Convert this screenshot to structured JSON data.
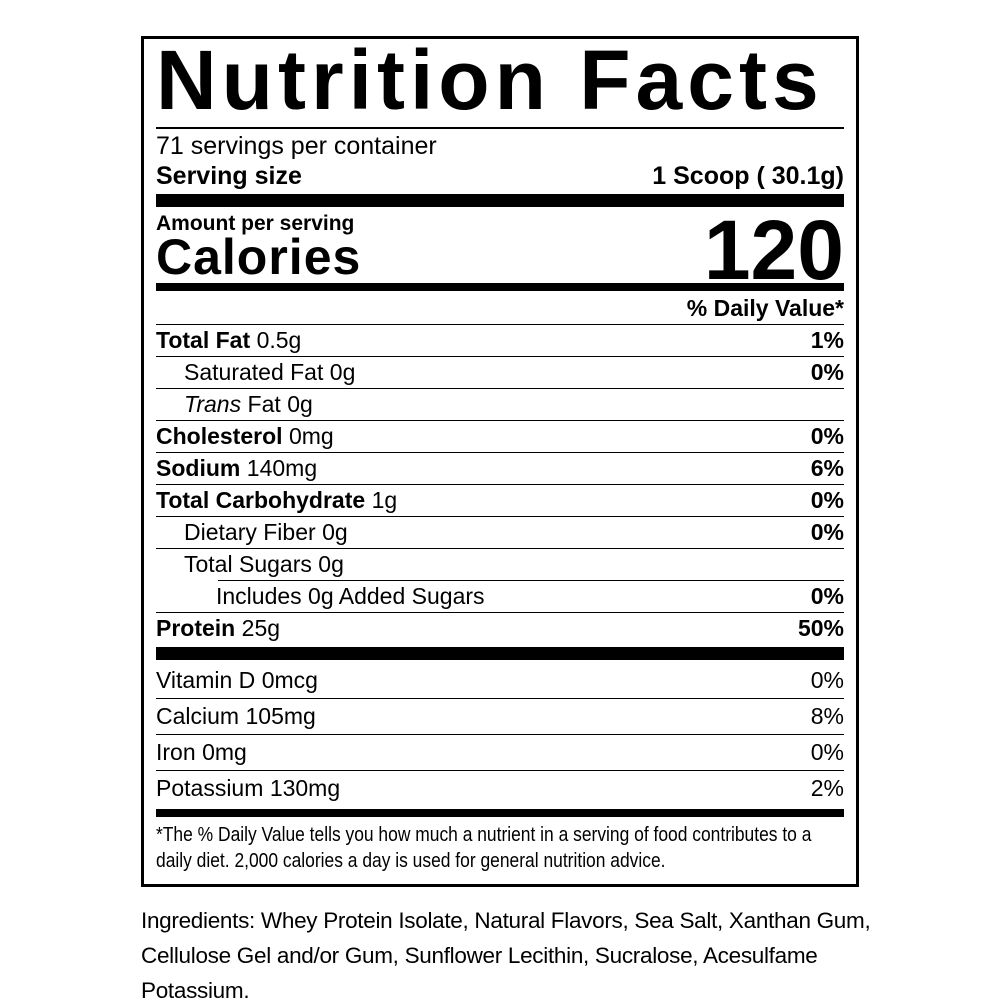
{
  "nutrition_label": {
    "title": "Nutrition Facts",
    "servings_per_container": "71 servings per container",
    "serving_size": {
      "label": "Serving size",
      "value": "1 Scoop ( 30.1g)"
    },
    "amount_per_serving": "Amount per serving",
    "calories": {
      "label": "Calories",
      "value": "120"
    },
    "daily_value_header": "% Daily Value*",
    "nutrients": [
      {
        "name": "Total Fat",
        "amount": "0.5g",
        "dv": "1%"
      },
      {
        "name": "Saturated Fat",
        "amount": "0g",
        "dv": "0%"
      },
      {
        "name_italic": "Trans",
        "name": "Fat",
        "amount": "0g",
        "dv": ""
      },
      {
        "name": "Cholesterol",
        "amount": "0mg",
        "dv": "0%"
      },
      {
        "name": "Sodium",
        "amount": "140mg",
        "dv": "6%"
      },
      {
        "name": "Total Carbohydrate",
        "amount": "1g",
        "dv": "0%"
      },
      {
        "name": "Dietary Fiber",
        "amount": "0g",
        "dv": "0%"
      },
      {
        "name": "Total Sugars",
        "amount": "0g",
        "dv": ""
      },
      {
        "name": "Includes 0g Added Sugars",
        "amount": "",
        "dv": "0%"
      },
      {
        "name": "Protein",
        "amount": "25g",
        "dv": "50%"
      }
    ],
    "vitamins": [
      {
        "name": "Vitamin D",
        "amount": "0mcg",
        "dv": "0%"
      },
      {
        "name": "Calcium",
        "amount": "105mg",
        "dv": "8%"
      },
      {
        "name": "Iron",
        "amount": "0mg",
        "dv": "0%"
      },
      {
        "name": "Potassium",
        "amount": "130mg",
        "dv": "2%"
      }
    ],
    "footnote": "*The % Daily Value tells you how much a nutrient in a serving of food contributes to a daily diet. 2,000 calories a day is used for general nutrition advice.",
    "colors": {
      "ink": "#000000",
      "background": "#ffffff"
    }
  },
  "ingredients_text": "Ingredients: Whey Protein Isolate, Natural Flavors, Sea Salt, Xanthan Gum, Cellulose Gel and/or Gum, Sunflower Lecithin, Sucralose, Acesulfame Potassium."
}
